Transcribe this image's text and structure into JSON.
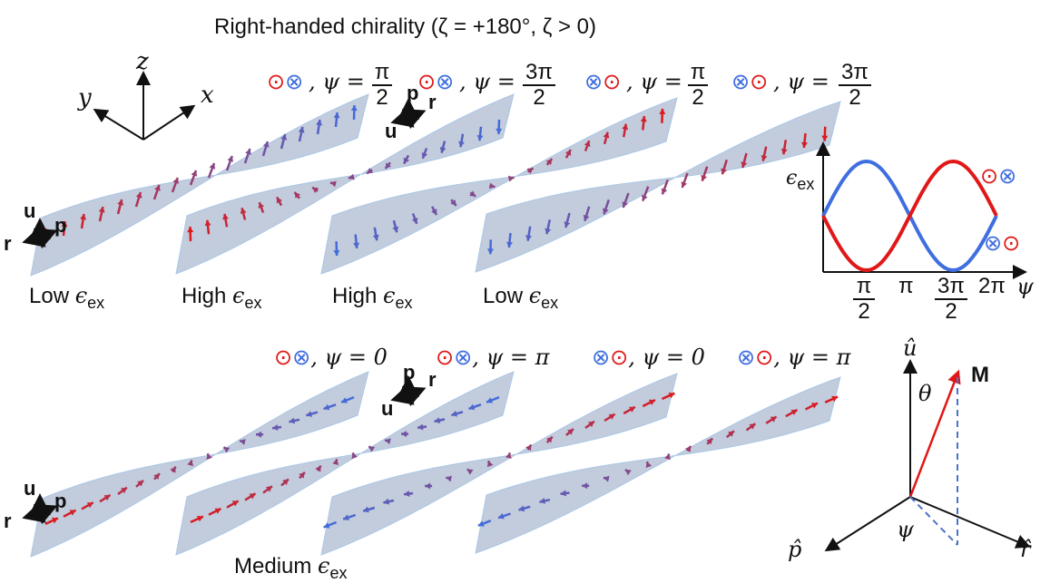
{
  "title": "Right-handed chirality (ζ = +180°, ζ > 0)",
  "axes_labels": {
    "x": "x",
    "y": "y",
    "z": "z"
  },
  "frame_labels": {
    "u": "u",
    "p": "p",
    "r": "r"
  },
  "top_row": {
    "headers": [
      {
        "sym1": "⊙",
        "sym2": "⊗",
        "sym1_color": "#e01818",
        "sym2_color": "#3f6ee0",
        "psi_label": ", ψ =",
        "num": "π",
        "den": "2"
      },
      {
        "sym1": "⊙",
        "sym2": "⊗",
        "sym1_color": "#e01818",
        "sym2_color": "#3f6ee0",
        "psi_label": ", ψ =",
        "num": "3π",
        "den": "2"
      },
      {
        "sym1": "⊗",
        "sym2": "⊙",
        "sym1_color": "#3f6ee0",
        "sym2_color": "#e01818",
        "psi_label": ", ψ =",
        "num": "π",
        "den": "2"
      },
      {
        "sym1": "⊗",
        "sym2": "⊙",
        "sym1_color": "#3f6ee0",
        "sym2_color": "#e01818",
        "psi_label": ", ψ =",
        "num": "3π",
        "den": "2"
      }
    ],
    "energies": [
      "Low ",
      "High ",
      "High ",
      "Low "
    ],
    "eps_symbol": "ϵ",
    "eps_sub": "ex"
  },
  "bottom_row": {
    "headers": [
      {
        "sym1": "⊙",
        "sym2": "⊗",
        "sym1_color": "#e01818",
        "sym2_color": "#3f6ee0",
        "psi_label": ", ψ = 0"
      },
      {
        "sym1": "⊙",
        "sym2": "⊗",
        "sym1_color": "#e01818",
        "sym2_color": "#3f6ee0",
        "psi_label": ", ψ = π"
      },
      {
        "sym1": "⊗",
        "sym2": "⊙",
        "sym1_color": "#3f6ee0",
        "sym2_color": "#e01818",
        "psi_label": ", ψ = 0"
      },
      {
        "sym1": "⊗",
        "sym2": "⊙",
        "sym1_color": "#3f6ee0",
        "sym2_color": "#e01818",
        "psi_label": ", ψ = π"
      }
    ],
    "energy": "Medium "
  },
  "energy_plot": {
    "ylabel": "ϵex",
    "xticks": [
      {
        "num": "π",
        "den": "2"
      },
      {
        "label": "π"
      },
      {
        "num": "3π",
        "den": "2"
      },
      {
        "label": "2π"
      }
    ],
    "xlabel": "ψ",
    "legend": [
      {
        "sym1": "⊙",
        "sym2": "⊗",
        "sym1_color": "#e01818",
        "sym2_color": "#3f6ee0"
      },
      {
        "sym1": "⊗",
        "sym2": "⊙",
        "sym1_color": "#3f6ee0",
        "sym2_color": "#e01818"
      }
    ]
  },
  "vector_diagram": {
    "u_hat": "û",
    "p_hat": "p̂",
    "r_hat": "r̂",
    "M": "M",
    "theta": "θ",
    "psi": "ψ"
  },
  "colors": {
    "red": "#e01818",
    "blue": "#3f6ee0",
    "ribbon": "#b4bfd1",
    "ribbon_edge": "#a9c7e6"
  }
}
